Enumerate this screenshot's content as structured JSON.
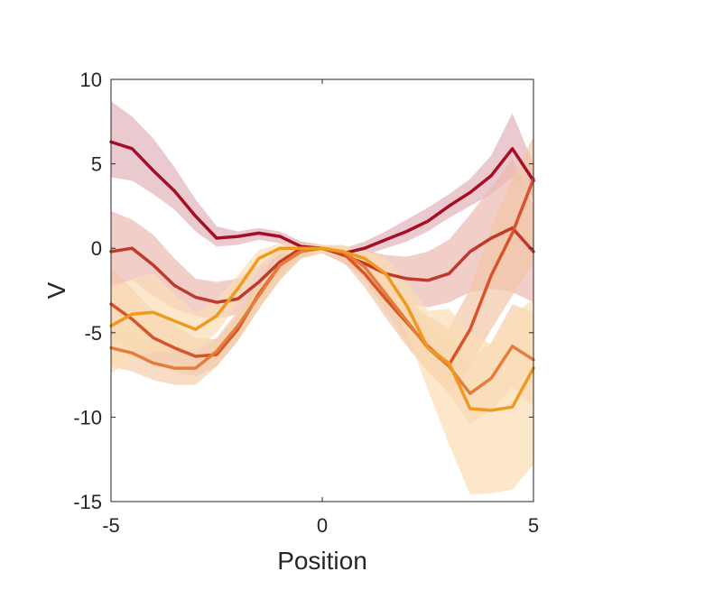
{
  "chart_data": {
    "type": "line",
    "title": "",
    "xlabel": "Position",
    "ylabel": "V",
    "xlim": [
      -5,
      5
    ],
    "ylim": [
      -15,
      10
    ],
    "xticks": [
      -5,
      0,
      5
    ],
    "yticks": [
      10,
      5,
      0,
      -5,
      -10,
      -15
    ],
    "xtick_labels": [
      "-5",
      "0",
      "5"
    ],
    "ytick_labels": [
      "10",
      "5",
      "0",
      "-5",
      "-10",
      "-15"
    ],
    "grid": false,
    "legend": "none",
    "series": [
      {
        "color": "#A50F25",
        "band_color": "#E3B3BB",
        "x": [
          -5,
          -4.5,
          -4,
          -3.5,
          -3,
          -2.5,
          -2,
          -1.5,
          -1,
          -0.5,
          0,
          0.5,
          1,
          1.5,
          2,
          2.5,
          3,
          3.5,
          4,
          4.5,
          5
        ],
        "y": [
          6.3,
          5.9,
          4.6,
          3.4,
          1.9,
          0.6,
          0.7,
          0.9,
          0.7,
          0.1,
          0.0,
          -0.3,
          0.0,
          0.5,
          1.0,
          1.6,
          2.5,
          3.3,
          4.3,
          5.9,
          4.0
        ],
        "lower": [
          4.2,
          4.0,
          3.2,
          2.3,
          1.0,
          0.1,
          0.2,
          0.5,
          0.3,
          -0.3,
          -0.2,
          -0.6,
          -0.4,
          0.0,
          0.4,
          1.0,
          1.8,
          2.5,
          3.2,
          4.2,
          3.0
        ],
        "upper": [
          8.7,
          7.8,
          6.5,
          4.8,
          2.9,
          1.3,
          1.0,
          1.2,
          1.0,
          0.4,
          0.2,
          0.0,
          0.4,
          1.0,
          1.7,
          2.4,
          3.2,
          4.1,
          5.5,
          8.0,
          5.0
        ]
      },
      {
        "color": "#C0392B",
        "band_color": "#EBB9B1",
        "x": [
          -5,
          -4.5,
          -4,
          -3.5,
          -3,
          -2.5,
          -2,
          -1.5,
          -1,
          -0.5,
          0,
          0.5,
          1,
          1.5,
          2,
          2.5,
          3,
          3.5,
          4,
          4.5,
          5
        ],
        "y": [
          -0.2,
          0.0,
          -1.0,
          -2.2,
          -2.9,
          -3.2,
          -3.0,
          -2.0,
          -0.8,
          0.0,
          0.0,
          -0.4,
          -0.9,
          -1.5,
          -1.8,
          -1.9,
          -1.5,
          -0.2,
          0.6,
          1.2,
          -0.2
        ],
        "lower": [
          -2.2,
          -1.9,
          -2.8,
          -3.6,
          -4.0,
          -4.2,
          -3.9,
          -2.9,
          -1.5,
          -0.4,
          -0.3,
          -0.9,
          -1.7,
          -2.8,
          -3.3,
          -3.5,
          -3.2,
          -2.6,
          -2.4,
          -2.6,
          -3.2
        ],
        "upper": [
          2.2,
          1.7,
          0.8,
          -0.6,
          -1.8,
          -2.0,
          -1.8,
          -1.0,
          -0.1,
          0.4,
          0.2,
          0.1,
          -0.1,
          -0.4,
          -0.5,
          -0.2,
          0.5,
          2.0,
          3.6,
          5.3,
          2.5
        ]
      },
      {
        "color": "#D7542A",
        "band_color": "#F2C6A6",
        "x": [
          -5,
          -4.5,
          -4,
          -3.5,
          -3,
          -2.5,
          -2,
          -1.5,
          -1,
          -0.5,
          0,
          0.5,
          1,
          1.5,
          2,
          2.5,
          3,
          3.5,
          4,
          4.5,
          5
        ],
        "y": [
          -3.3,
          -4.2,
          -5.3,
          -5.9,
          -6.4,
          -6.3,
          -4.8,
          -2.7,
          -1.0,
          -0.1,
          0.0,
          -0.3,
          -1.5,
          -3.0,
          -4.4,
          -5.8,
          -6.9,
          -4.8,
          -1.6,
          0.9,
          4.1
        ],
        "lower": [
          -5.2,
          -6.0,
          -6.8,
          -7.3,
          -7.6,
          -7.0,
          -5.5,
          -3.6,
          -1.9,
          -0.6,
          -0.3,
          -0.8,
          -2.3,
          -4.1,
          -5.8,
          -7.3,
          -8.6,
          -7.0,
          -4.8,
          -2.8,
          -0.8
        ],
        "upper": [
          -1.1,
          -2.4,
          -3.7,
          -4.5,
          -5.3,
          -5.4,
          -3.9,
          -1.8,
          -0.2,
          0.3,
          0.2,
          0.1,
          -0.6,
          -2.0,
          -3.0,
          -4.0,
          -4.7,
          -2.4,
          1.2,
          4.2,
          6.6
        ]
      },
      {
        "color": "#E47D3B",
        "band_color": "#F5CFAE",
        "x": [
          -5,
          -4.5,
          -4,
          -3.5,
          -3,
          -2.5,
          -2,
          -1.5,
          -1,
          -0.5,
          0,
          0.5,
          1,
          1.5,
          2,
          2.5,
          3,
          3.5,
          4,
          4.5,
          5
        ],
        "y": [
          -5.9,
          -6.2,
          -6.8,
          -7.1,
          -7.1,
          -6.1,
          -4.6,
          -2.8,
          -1.0,
          -0.2,
          0.0,
          -0.2,
          -1.1,
          -2.7,
          -4.3,
          -5.9,
          -7.0,
          -8.6,
          -7.7,
          -5.8,
          -6.6
        ],
        "lower": [
          -7.0,
          -7.3,
          -7.8,
          -8.1,
          -8.1,
          -7.0,
          -5.5,
          -3.6,
          -1.8,
          -0.6,
          -0.3,
          -0.7,
          -1.9,
          -3.7,
          -5.5,
          -7.3,
          -8.6,
          -10.4,
          -9.6,
          -8.2,
          -9.4
        ],
        "upper": [
          -4.7,
          -5.0,
          -5.6,
          -6.0,
          -6.2,
          -5.3,
          -3.7,
          -2.1,
          -0.3,
          0.3,
          0.2,
          0.2,
          -0.3,
          -1.8,
          -3.2,
          -4.4,
          -5.3,
          -6.6,
          -5.6,
          -3.3,
          -3.8
        ]
      },
      {
        "color": "#EE9A1F",
        "band_color": "#FBDDB4",
        "x": [
          -5,
          -4.5,
          -4,
          -3.5,
          -3,
          -2.5,
          -2,
          -1.5,
          -1,
          -0.5,
          0,
          0.5,
          1,
          1.5,
          2,
          2.5,
          3,
          3.5,
          4,
          4.5,
          5
        ],
        "y": [
          -4.6,
          -3.9,
          -3.8,
          -4.3,
          -4.8,
          -4.0,
          -2.4,
          -0.6,
          0.0,
          0.0,
          0.0,
          -0.2,
          -0.6,
          -1.5,
          -3.4,
          -5.9,
          -6.8,
          -9.5,
          -9.6,
          -9.4,
          -7.1
        ],
        "lower": [
          -7.4,
          -6.6,
          -6.1,
          -6.1,
          -6.0,
          -5.0,
          -3.3,
          -1.3,
          -0.3,
          -0.3,
          -0.3,
          -0.5,
          -1.1,
          -2.4,
          -5.0,
          -8.4,
          -11.6,
          -14.6,
          -14.5,
          -14.3,
          -12.8
        ],
        "upper": [
          -2.5,
          -1.8,
          -1.5,
          -2.7,
          -3.8,
          -3.0,
          -1.6,
          -0.1,
          0.3,
          0.2,
          0.2,
          0.1,
          -0.1,
          -0.6,
          -2.0,
          -3.7,
          -3.6,
          -5.0,
          -5.7,
          -4.0,
          -3.0
        ]
      }
    ]
  }
}
